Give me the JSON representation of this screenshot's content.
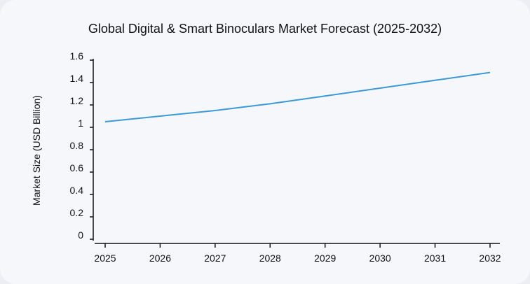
{
  "chart_data": {
    "type": "line",
    "title": "Global Digital & Smart Binoculars Market Forecast (2025-2032)",
    "xlabel": "",
    "ylabel": "Market Size (USD Billion)",
    "categories": [
      "2025",
      "2026",
      "2027",
      "2028",
      "2029",
      "2030",
      "2031",
      "2032"
    ],
    "values": [
      1.05,
      1.1,
      1.15,
      1.21,
      1.28,
      1.35,
      1.42,
      1.49
    ],
    "ylim": [
      0,
      1.6
    ],
    "yticks": [
      "0",
      "0.2",
      "0.4",
      "0.6",
      "0.8",
      "1",
      "1.2",
      "1.4",
      "1.6"
    ],
    "grid": false,
    "line_color": "#3a9ad9"
  }
}
